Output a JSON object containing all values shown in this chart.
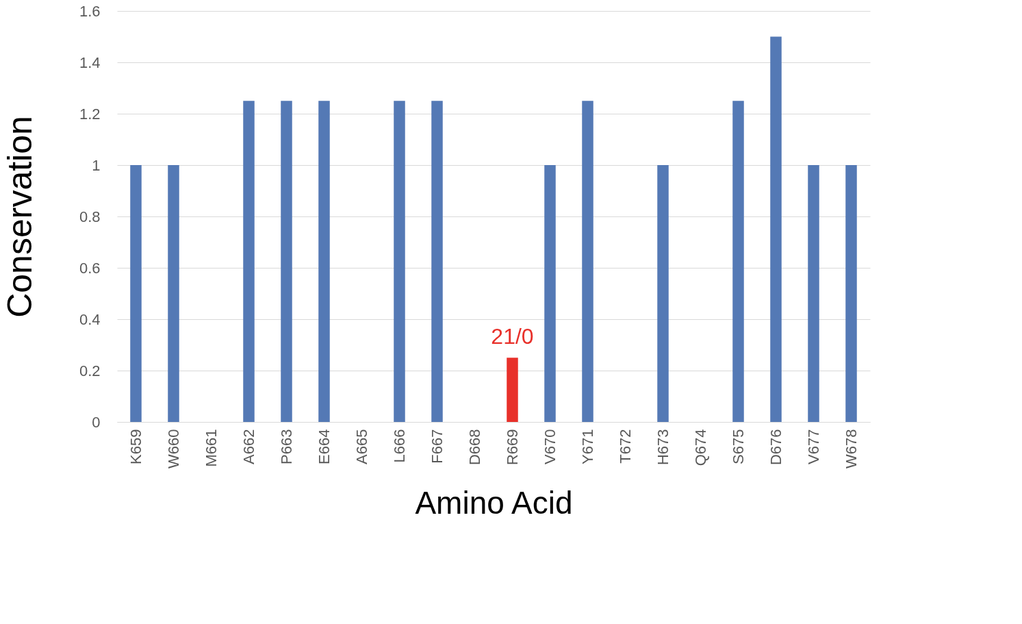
{
  "chart_data": {
    "type": "bar",
    "xlabel": "Amino Acid",
    "ylabel": "Conservation",
    "categories": [
      "K659",
      "W660",
      "M661",
      "A662",
      "P663",
      "E664",
      "A665",
      "L666",
      "F667",
      "D668",
      "R669",
      "V670",
      "Y671",
      "T672",
      "H673",
      "Q674",
      "S675",
      "D676",
      "V677",
      "W678"
    ],
    "values": [
      1,
      1,
      0,
      1.25,
      1.25,
      1.25,
      0,
      1.25,
      1.25,
      0,
      0.25,
      1,
      1.25,
      0,
      1,
      0,
      1.25,
      1.5,
      1,
      1
    ],
    "colors": [
      "#5479b5",
      "#5479b5",
      "#5479b5",
      "#5479b5",
      "#5479b5",
      "#5479b5",
      "#5479b5",
      "#5479b5",
      "#5479b5",
      "#5479b5",
      "#e8302a",
      "#5479b5",
      "#5479b5",
      "#5479b5",
      "#5479b5",
      "#5479b5",
      "#5479b5",
      "#5479b5",
      "#5479b5",
      "#5479b5"
    ],
    "ylim": [
      0,
      1.6
    ],
    "yticks": [
      0,
      0.2,
      0.4,
      0.6,
      0.8,
      1,
      1.2,
      1.4,
      1.6
    ],
    "grid": "y",
    "annotations": [
      {
        "text": "21/0",
        "x": "R669",
        "y": 0.25
      }
    ]
  }
}
